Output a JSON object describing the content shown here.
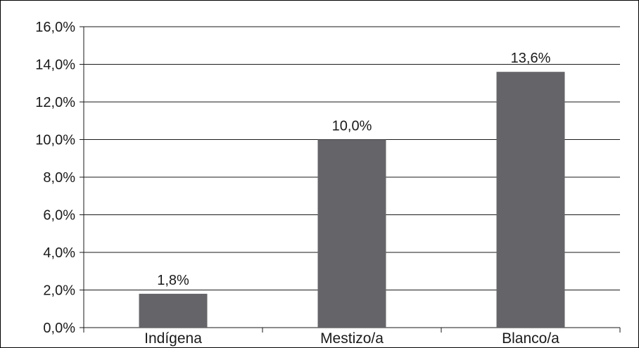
{
  "chart_data": {
    "type": "bar",
    "categories": [
      "Indígena",
      "Mestizo/a",
      "Blanco/a"
    ],
    "values": [
      1.8,
      10.0,
      13.6
    ],
    "value_labels": [
      "1,8%",
      "10,0%",
      "13,6%"
    ],
    "title": "",
    "xlabel": "",
    "ylabel": "",
    "ylim": [
      0,
      16
    ],
    "yticks": [
      0,
      2,
      4,
      6,
      8,
      10,
      12,
      14,
      16
    ],
    "ytick_labels": [
      "0,0%",
      "2,0%",
      "4,0%",
      "6,0%",
      "8,0%",
      "10,0%",
      "12,0%",
      "14,0%",
      "16,0%"
    ],
    "grid": true,
    "legend": "none",
    "colors": {
      "bar": "#656569",
      "grid": "#1a1a1a",
      "text": "#1a1a1a"
    }
  }
}
